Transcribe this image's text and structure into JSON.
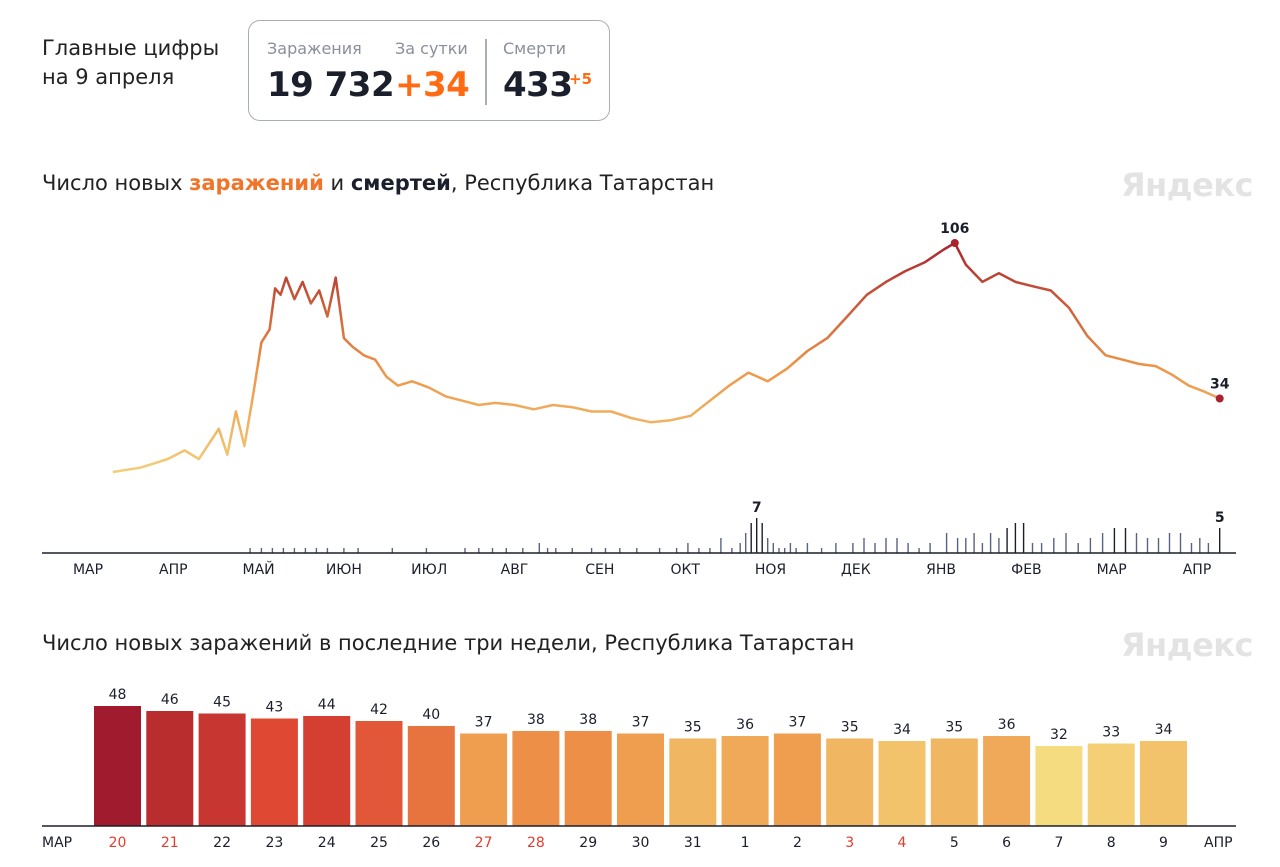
{
  "header": {
    "headline_line1": "Главные цифры",
    "headline_line2": "на 9 апреля",
    "infections_label": "Заражения",
    "infections_value": "19 732",
    "day_label": "За сутки",
    "day_value": "+34",
    "deaths_label": "Смерти",
    "deaths_value": "433",
    "deaths_delta": "+5"
  },
  "brand": "Яндекс",
  "colors": {
    "infections": "#f0742a",
    "deaths": "#2e3452",
    "low": "#f3cf7a",
    "high": "#a51c30",
    "axis": "#1b1f2b",
    "weekend": "#e33b2e"
  },
  "chart_data": [
    {
      "type": "line",
      "title_parts": [
        "Число новых ",
        "заражений",
        " и ",
        "смертей",
        ", Республика Татарстан"
      ],
      "x_months": [
        "МАР",
        "АПР",
        "МАЙ",
        "ИЮН",
        "ИЮЛ",
        "АВГ",
        "СЕН",
        "ОКТ",
        "НОЯ",
        "ДЕК",
        "ЯНВ",
        "ФЕВ",
        "МАР",
        "АПР"
      ],
      "series": [
        {
          "key": "infections",
          "x": [
            "2020-03-10",
            "2020-03-20",
            "2020-03-25",
            "2020-03-30",
            "2020-04-05",
            "2020-04-10",
            "2020-04-13",
            "2020-04-17",
            "2020-04-20",
            "2020-04-23",
            "2020-04-26",
            "2020-04-29",
            "2020-05-02",
            "2020-05-05",
            "2020-05-07",
            "2020-05-09",
            "2020-05-11",
            "2020-05-14",
            "2020-05-17",
            "2020-05-20",
            "2020-05-23",
            "2020-05-26",
            "2020-05-29",
            "2020-06-01",
            "2020-06-04",
            "2020-06-08",
            "2020-06-12",
            "2020-06-16",
            "2020-06-20",
            "2020-06-25",
            "2020-07-01",
            "2020-07-07",
            "2020-07-13",
            "2020-07-19",
            "2020-07-25",
            "2020-08-01",
            "2020-08-08",
            "2020-08-15",
            "2020-08-22",
            "2020-08-29",
            "2020-09-05",
            "2020-09-12",
            "2020-09-19",
            "2020-09-26",
            "2020-10-03",
            "2020-10-10",
            "2020-10-17",
            "2020-10-24",
            "2020-10-31",
            "2020-11-07",
            "2020-11-14",
            "2020-11-21",
            "2020-11-28",
            "2020-12-05",
            "2020-12-12",
            "2020-12-19",
            "2020-12-26",
            "2021-01-02",
            "2021-01-06",
            "2021-01-10",
            "2021-01-16",
            "2021-01-22",
            "2021-01-28",
            "2021-02-03",
            "2021-02-09",
            "2021-02-15",
            "2021-02-21",
            "2021-02-27",
            "2021-03-05",
            "2021-03-11",
            "2021-03-17",
            "2021-03-23",
            "2021-03-29",
            "2021-04-04",
            "2021-04-09"
          ],
          "values": [
            0,
            2,
            4,
            6,
            10,
            6,
            12,
            20,
            8,
            28,
            12,
            35,
            60,
            66,
            85,
            82,
            90,
            80,
            88,
            78,
            84,
            72,
            90,
            62,
            58,
            54,
            52,
            44,
            40,
            42,
            39,
            35,
            33,
            31,
            32,
            31,
            29,
            31,
            30,
            28,
            28,
            25,
            23,
            24,
            26,
            33,
            40,
            46,
            42,
            48,
            56,
            62,
            72,
            82,
            88,
            93,
            97,
            103,
            106,
            96,
            88,
            92,
            88,
            86,
            84,
            76,
            63,
            54,
            52,
            50,
            49,
            45,
            40,
            37,
            34
          ],
          "annotations": [
            {
              "label": "106",
              "x": "2021-01-06",
              "y": 106
            },
            {
              "label": "34",
              "x": "2021-04-09",
              "y": 34
            }
          ]
        },
        {
          "key": "deaths",
          "x": [
            "2020-04-28",
            "2020-05-02",
            "2020-05-06",
            "2020-05-10",
            "2020-05-14",
            "2020-05-18",
            "2020-05-22",
            "2020-05-26",
            "2020-06-01",
            "2020-06-06",
            "2020-06-18",
            "2020-06-30",
            "2020-07-14",
            "2020-07-19",
            "2020-07-24",
            "2020-07-29",
            "2020-08-04",
            "2020-08-10",
            "2020-08-13",
            "2020-08-16",
            "2020-08-22",
            "2020-08-29",
            "2020-09-03",
            "2020-09-08",
            "2020-09-14",
            "2020-09-22",
            "2020-09-28",
            "2020-10-02",
            "2020-10-06",
            "2020-10-10",
            "2020-10-14",
            "2020-10-18",
            "2020-10-21",
            "2020-10-23",
            "2020-10-25",
            "2020-10-27",
            "2020-10-29",
            "2020-10-31",
            "2020-11-02",
            "2020-11-04",
            "2020-11-06",
            "2020-11-08",
            "2020-11-10",
            "2020-11-14",
            "2020-11-19",
            "2020-11-24",
            "2020-11-30",
            "2020-12-04",
            "2020-12-08",
            "2020-12-12",
            "2020-12-16",
            "2020-12-20",
            "2020-12-24",
            "2020-12-28",
            "2021-01-03",
            "2021-01-07",
            "2021-01-10",
            "2021-01-13",
            "2021-01-16",
            "2021-01-19",
            "2021-01-22",
            "2021-01-25",
            "2021-01-28",
            "2021-01-31",
            "2021-02-03",
            "2021-02-06",
            "2021-02-10",
            "2021-02-14",
            "2021-02-18",
            "2021-02-22",
            "2021-02-26",
            "2021-03-02",
            "2021-03-06",
            "2021-03-10",
            "2021-03-14",
            "2021-03-18",
            "2021-03-22",
            "2021-03-26",
            "2021-03-30",
            "2021-04-02",
            "2021-04-05",
            "2021-04-09"
          ],
          "values": [
            1,
            1,
            1,
            1,
            1,
            1,
            1,
            1,
            1,
            1,
            1,
            1,
            1,
            1,
            1,
            1,
            1,
            2,
            1,
            1,
            1,
            1,
            1,
            1,
            1,
            1,
            1,
            2,
            1,
            1,
            3,
            1,
            2,
            4,
            6,
            7,
            6,
            3,
            2,
            1,
            1,
            2,
            1,
            2,
            1,
            2,
            2,
            3,
            2,
            3,
            3,
            2,
            1,
            2,
            4,
            3,
            3,
            4,
            2,
            4,
            3,
            5,
            6,
            6,
            2,
            2,
            3,
            4,
            2,
            3,
            4,
            5,
            5,
            4,
            3,
            3,
            4,
            4,
            2,
            3,
            2,
            5
          ],
          "annotations": [
            {
              "label": "7",
              "x": "2020-10-27",
              "y": 7
            },
            {
              "label": "5",
              "x": "2021-04-09",
              "y": 5
            }
          ]
        }
      ]
    },
    {
      "type": "bar",
      "title": "Число новых заражений в последние три недели, Республика Татарстан",
      "axis_start": "МАР",
      "axis_end": "АПР",
      "categories": [
        "20",
        "21",
        "22",
        "23",
        "24",
        "25",
        "26",
        "27",
        "28",
        "29",
        "30",
        "31",
        "1",
        "2",
        "3",
        "4",
        "5",
        "6",
        "7",
        "8",
        "9"
      ],
      "values": [
        48,
        46,
        45,
        43,
        44,
        42,
        40,
        37,
        38,
        38,
        37,
        35,
        36,
        37,
        35,
        34,
        35,
        36,
        32,
        33,
        34
      ],
      "weekend_days": [
        "20",
        "21",
        "27",
        "28",
        "3",
        "4"
      ]
    }
  ]
}
